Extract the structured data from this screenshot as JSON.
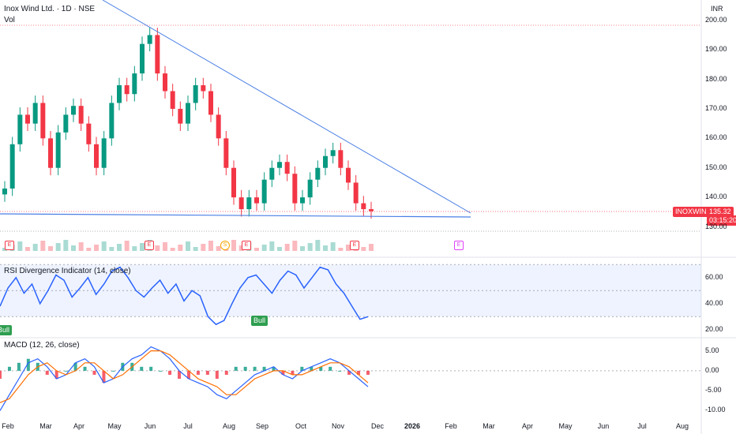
{
  "header": {
    "title": "Inox Wind Ltd. · 1D · NSE",
    "vol_label": "Vol"
  },
  "currency": "INR",
  "price_badge": {
    "symbol": "INOXWIND",
    "price": "135.32",
    "countdown": "03:15:20"
  },
  "rsi_header": "RSI Divergence Indicator (14, close)",
  "macd_header": "MACD (12, 26, close)",
  "bull_labels": [
    "Bull",
    "Bull"
  ],
  "event_markers": [
    {
      "glyph": "E",
      "kind": "earnings"
    },
    {
      "glyph": "E",
      "kind": "earnings"
    },
    {
      "glyph": "S",
      "kind": "split"
    },
    {
      "glyph": "E",
      "kind": "earnings"
    },
    {
      "glyph": "E",
      "kind": "earnings"
    },
    {
      "glyph": "E",
      "kind": "upcoming-earnings"
    }
  ],
  "colors": {
    "up": "#089981",
    "down": "#f23645",
    "line": "#4a7fe5",
    "rsi": "#2962ff",
    "macd": "#2962ff",
    "signal": "#ff6d00",
    "bull": "#2e9e4f"
  },
  "chart_data": [
    {
      "type": "candlestick",
      "title": "Inox Wind Ltd. · 1D · NSE",
      "ylim": [
        128,
        201
      ],
      "y_ticks": [
        "200.00",
        "190.00",
        "180.00",
        "170.00",
        "160.00",
        "150.00",
        "140.00",
        "130.00"
      ],
      "x_ticks": [
        "Feb",
        "Mar",
        "Apr",
        "May",
        "Jun",
        "Jul",
        "Aug",
        "Sep",
        "Oct",
        "Nov",
        "Dec",
        "2026",
        "Feb",
        "Mar",
        "Apr",
        "May",
        "Jun",
        "Jul",
        "Aug"
      ],
      "approx_closes": [
        143,
        158,
        168,
        165,
        172,
        160,
        150,
        162,
        168,
        171,
        165,
        158,
        150,
        160,
        172,
        178,
        175,
        182,
        192,
        195,
        182,
        176,
        170,
        165,
        172,
        178,
        176,
        168,
        160,
        150,
        140,
        136,
        140,
        138,
        146,
        150,
        152,
        148,
        138,
        140,
        146,
        150,
        154,
        156,
        150,
        145,
        138,
        136,
        135.32
      ],
      "trendlines": [
        {
          "name": "descending resistance",
          "from": [
            "2025-01-20",
            206
          ],
          "to": [
            "2026-02-20",
            135
          ]
        },
        {
          "name": "horizontal support",
          "from": [
            "2025-01-20",
            137
          ],
          "to": [
            "2026-02-20",
            135
          ]
        }
      ],
      "last_price": 135.32
    },
    {
      "type": "line",
      "title": "RSI Divergence Indicator (14, close)",
      "ylim": [
        15,
        72
      ],
      "y_ticks": [
        "60.00",
        "40.00",
        "20.00"
      ],
      "bands": [
        30,
        50,
        70
      ],
      "values": [
        38,
        52,
        60,
        48,
        55,
        40,
        50,
        62,
        58,
        45,
        52,
        60,
        47,
        55,
        65,
        68,
        60,
        50,
        45,
        52,
        58,
        48,
        55,
        42,
        50,
        46,
        30,
        24,
        27,
        40,
        52,
        60,
        62,
        55,
        48,
        58,
        65,
        62,
        52,
        60,
        68,
        66,
        55,
        48,
        38,
        28,
        30
      ]
    },
    {
      "type": "line",
      "title": "MACD (12, 26, close)",
      "ylim": [
        -11.5,
        7.5
      ],
      "y_ticks": [
        "5.00",
        "0.00",
        "-5.00",
        "-10.00"
      ],
      "series": [
        {
          "name": "MACD",
          "values": [
            -10,
            -6,
            -2,
            2,
            3,
            1,
            -2,
            -1,
            2,
            3,
            1,
            -3,
            -2,
            1,
            3,
            4,
            6,
            5,
            3,
            0,
            -2,
            -3,
            -4,
            -6,
            -7,
            -5,
            -3,
            -1,
            0,
            1,
            -1,
            -2,
            0,
            1,
            2,
            3,
            2,
            0,
            -2,
            -4
          ]
        },
        {
          "name": "Signal",
          "values": [
            -8,
            -7,
            -4,
            -1,
            1,
            2,
            0,
            -1,
            0,
            2,
            2,
            0,
            -2,
            -1,
            1,
            3,
            5,
            5,
            4,
            2,
            0,
            -2,
            -3,
            -4,
            -6,
            -6,
            -4,
            -2,
            -1,
            0,
            0,
            -1,
            -1,
            0,
            1,
            2,
            2,
            1,
            -1,
            -3
          ]
        }
      ]
    }
  ]
}
